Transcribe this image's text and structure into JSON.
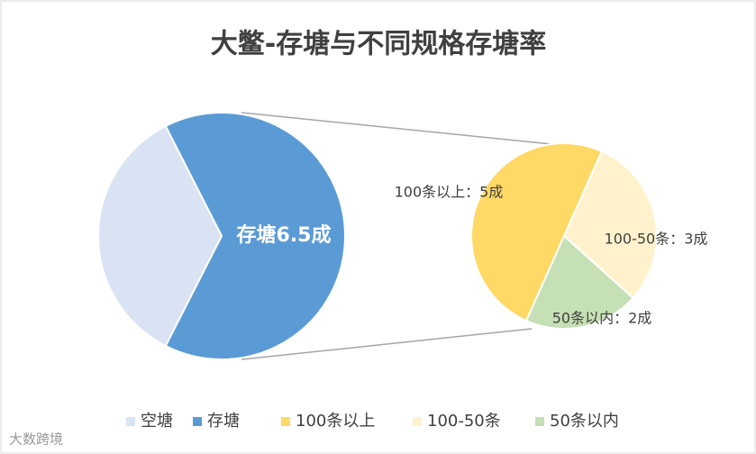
{
  "chart_data": {
    "type": "pie-of-pie",
    "title": "大鳖-存塘与不同规格存塘率",
    "main": {
      "categories": [
        "空塘",
        "存塘"
      ],
      "values": [
        3.5,
        6.5
      ],
      "value_labels": [
        null,
        "存塘6.5成"
      ],
      "colors": [
        "#dae3f3",
        "#5b9bd5"
      ]
    },
    "sub": {
      "categories": [
        "100条以上",
        "100-50条",
        "50条以内"
      ],
      "values": [
        5,
        3,
        2
      ],
      "value_labels": [
        "100条以上：5成",
        "100-50条：3成",
        "50条以内：2成"
      ],
      "colors": [
        "#ffd966",
        "#fff2cc",
        "#c5e0b4"
      ]
    },
    "legend": "bottom",
    "watermark": "大数跨境"
  }
}
